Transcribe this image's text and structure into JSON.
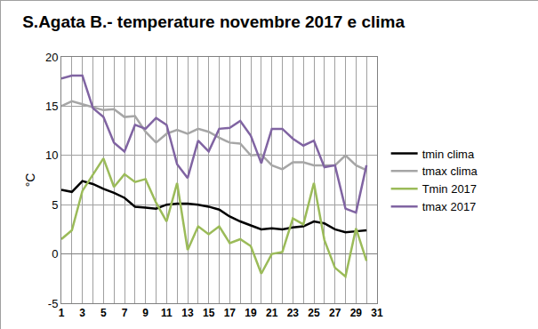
{
  "chart_data": {
    "type": "line",
    "title": "S.Agata B.- temperature novembre 2017 e clima",
    "y_label": "°C",
    "x": [
      1,
      2,
      3,
      4,
      5,
      6,
      7,
      8,
      9,
      10,
      11,
      12,
      13,
      14,
      15,
      16,
      17,
      18,
      19,
      20,
      21,
      22,
      23,
      24,
      25,
      26,
      27,
      28,
      29,
      30
    ],
    "series": [
      {
        "name": "tmin clima",
        "color": "#000000",
        "values": [
          6.5,
          6.3,
          7.4,
          7.1,
          6.6,
          6.2,
          5.7,
          4.8,
          4.7,
          4.6,
          5.0,
          5.1,
          5.1,
          5.0,
          4.8,
          4.5,
          3.8,
          3.3,
          2.9,
          2.5,
          2.6,
          2.5,
          2.7,
          2.8,
          3.3,
          3.1,
          2.5,
          2.2,
          2.3,
          2.4
        ]
      },
      {
        "name": "tmax clima",
        "color": "#a6a6a6",
        "values": [
          15.0,
          15.5,
          15.2,
          14.9,
          14.6,
          14.7,
          13.9,
          14.0,
          12.4,
          11.3,
          12.2,
          12.6,
          12.2,
          12.7,
          12.4,
          11.8,
          11.3,
          11.2,
          10.0,
          10.1,
          9.0,
          8.6,
          9.3,
          9.3,
          9.0,
          9.0,
          9.0,
          10.0,
          9.0,
          8.5
        ]
      },
      {
        "name": "Tmin 2017",
        "color": "#9bbb59",
        "values": [
          1.5,
          2.4,
          6.4,
          8.0,
          9.7,
          6.8,
          8.1,
          7.3,
          7.6,
          5.2,
          3.3,
          7.2,
          0.4,
          2.8,
          2.0,
          2.8,
          1.1,
          1.5,
          0.8,
          -2.0,
          0.0,
          0.2,
          3.6,
          3.0,
          7.2,
          1.4,
          -1.4,
          -2.3,
          2.6,
          -0.7
        ]
      },
      {
        "name": "tmax 2017",
        "color": "#8064a2",
        "values": [
          17.8,
          18.1,
          18.1,
          14.8,
          13.9,
          11.3,
          10.4,
          13.1,
          12.7,
          13.8,
          13.1,
          9.1,
          7.7,
          11.5,
          10.4,
          12.7,
          12.8,
          13.5,
          12.0,
          9.2,
          12.7,
          12.7,
          11.7,
          11.0,
          11.5,
          8.8,
          9.0,
          4.6,
          4.2,
          9.0
        ]
      }
    ],
    "xlim": [
      1,
      31
    ],
    "xticks": [
      1,
      3,
      5,
      7,
      9,
      11,
      13,
      15,
      17,
      19,
      21,
      23,
      25,
      27,
      29,
      31
    ],
    "ylim": [
      -5,
      20
    ],
    "yticks": [
      -5,
      0,
      5,
      10,
      15,
      20
    ],
    "grid": true,
    "legend": "right"
  }
}
